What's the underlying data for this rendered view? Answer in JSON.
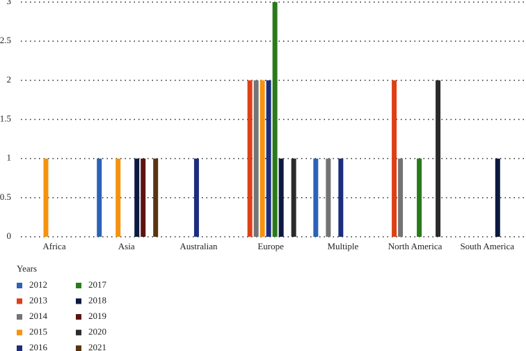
{
  "chart_data": {
    "type": "bar",
    "categories": [
      "Africa",
      "Asia",
      "Australian",
      "Europe",
      "Multiple",
      "North America",
      "South America"
    ],
    "legend_title": "Years",
    "series": [
      {
        "name": "2012",
        "color": "#2c62b8",
        "values": [
          0,
          1,
          0,
          0,
          1,
          0,
          0
        ]
      },
      {
        "name": "2013",
        "color": "#df3f16",
        "values": [
          0,
          0,
          0,
          2,
          0,
          2,
          0
        ]
      },
      {
        "name": "2014",
        "color": "#747474",
        "values": [
          0,
          0,
          0,
          2,
          1,
          1,
          0
        ]
      },
      {
        "name": "2015",
        "color": "#f7920e",
        "values": [
          1,
          1,
          0,
          2,
          0,
          0,
          0
        ]
      },
      {
        "name": "2016",
        "color": "#1b2d7c",
        "values": [
          0,
          0,
          1,
          2,
          1,
          0,
          0
        ]
      },
      {
        "name": "2017",
        "color": "#2a7a1c",
        "values": [
          0,
          0,
          0,
          3,
          0,
          1,
          0
        ]
      },
      {
        "name": "2018",
        "color": "#0c1a42",
        "values": [
          0,
          1,
          0,
          1,
          0,
          0,
          1
        ]
      },
      {
        "name": "2019",
        "color": "#5c1410",
        "values": [
          0,
          1,
          0,
          0,
          0,
          0,
          0
        ]
      },
      {
        "name": "2020",
        "color": "#2a2a2a",
        "values": [
          0,
          0,
          0,
          1,
          0,
          2,
          0
        ]
      },
      {
        "name": "2021",
        "color": "#5a3410",
        "values": [
          0,
          1,
          0,
          0,
          0,
          0,
          0
        ]
      }
    ],
    "ylim": [
      0,
      3
    ],
    "yticks": [
      0,
      0.5,
      1,
      1.5,
      2,
      2.5,
      3
    ],
    "grid": true
  }
}
